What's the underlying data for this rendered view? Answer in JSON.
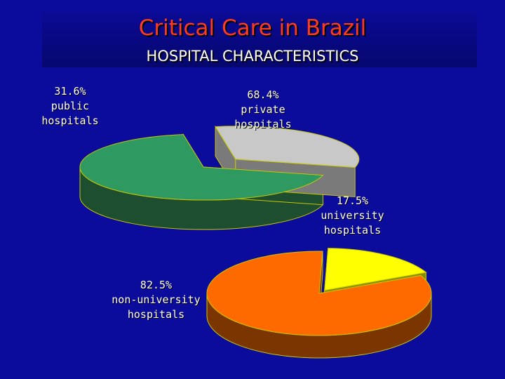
{
  "title": "Critical Care in Brazil",
  "subtitle": "HOSPITAL CHARACTERISTICS",
  "chart_data": [
    {
      "type": "pie",
      "style": "3d-exploded",
      "slices": [
        {
          "name": "private hospitals",
          "value": 68.4,
          "label_pct": "68.4%",
          "label_name": [
            "private",
            "hospitals"
          ],
          "color": "#2e9a62",
          "side_color": "#1e4e30"
        },
        {
          "name": "public hospitals",
          "value": 31.6,
          "label_pct": "31.6%",
          "label_name": [
            "public",
            "hospitals"
          ],
          "color": "#c8c8c8",
          "side_color": "#7a7a7a",
          "exploded": true
        }
      ]
    },
    {
      "type": "pie",
      "style": "3d-exploded",
      "slices": [
        {
          "name": "non-university hospitals",
          "value": 82.5,
          "label_pct": "82.5%",
          "label_name": [
            "non-university",
            "hospitals"
          ],
          "color": "#ff6a00",
          "side_color": "#7a3500"
        },
        {
          "name": "university hospitals",
          "value": 17.5,
          "label_pct": "17.5%",
          "label_name": [
            "university",
            "hospitals"
          ],
          "color": "#ffff00",
          "side_color": "#8a8a00",
          "exploded": true
        }
      ]
    }
  ]
}
